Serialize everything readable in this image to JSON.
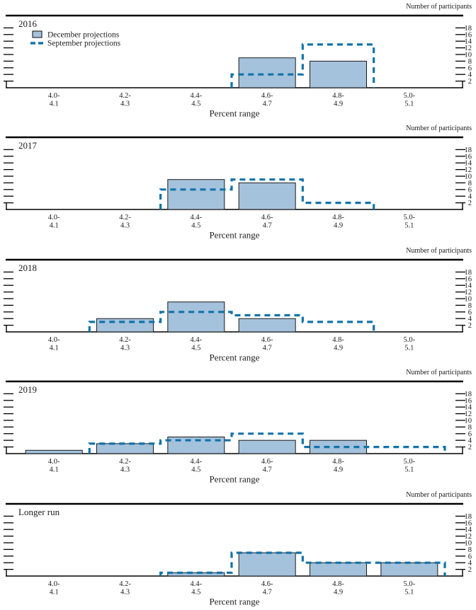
{
  "figure": {
    "right_axis_label": "Number of participants",
    "x_axis_label": "Percent range"
  },
  "chart_data": {
    "type": "bar",
    "subtype": "grouped-histogram-panels",
    "categories_line1": [
      "4.0-",
      "4.2-",
      "4.4-",
      "4.6-",
      "4.8-",
      "5.0-"
    ],
    "categories_line2": [
      "4.1",
      "4.3",
      "4.5",
      "4.7",
      "4.9",
      "5.1"
    ],
    "xlabel": "Percent range",
    "right_axis_label": "Number of participants",
    "yticks": [
      2,
      4,
      6,
      8,
      10,
      12,
      14,
      16,
      18
    ],
    "ylim": [
      0,
      21
    ],
    "grid": false,
    "legend": {
      "position": "top-left-first-panel",
      "entries": [
        {
          "name": "December projections",
          "style": "bar"
        },
        {
          "name": "September projections",
          "style": "dashed-line"
        }
      ]
    },
    "panels": [
      {
        "title": "2016",
        "show_legend": true,
        "series": [
          {
            "name": "December projections",
            "values": [
              0,
              0,
              0,
              9,
              8,
              0
            ]
          },
          {
            "name": "September projections",
            "values": [
              0,
              0,
              0,
              4,
              13,
              0
            ]
          }
        ]
      },
      {
        "title": "2017",
        "show_legend": false,
        "series": [
          {
            "name": "December projections",
            "values": [
              0,
              0,
              9,
              8,
              0,
              0
            ]
          },
          {
            "name": "September projections",
            "values": [
              0,
              0,
              6,
              9,
              2,
              0
            ]
          }
        ]
      },
      {
        "title": "2018",
        "show_legend": false,
        "series": [
          {
            "name": "December projections",
            "values": [
              0,
              4,
              9,
              4,
              0,
              0
            ]
          },
          {
            "name": "September projections",
            "values": [
              0,
              3,
              6,
              5,
              3,
              0
            ]
          }
        ]
      },
      {
        "title": "2019",
        "show_legend": false,
        "series": [
          {
            "name": "December projections",
            "values": [
              1,
              3,
              5,
              4,
              4,
              0
            ]
          },
          {
            "name": "September projections",
            "values": [
              0,
              3,
              4,
              6,
              2,
              2
            ]
          }
        ]
      },
      {
        "title": "Longer run",
        "show_legend": false,
        "series": [
          {
            "name": "December projections",
            "values": [
              0,
              0,
              1,
              7,
              4,
              4
            ]
          },
          {
            "name": "September projections",
            "values": [
              0,
              0,
              1,
              7,
              4,
              4
            ]
          }
        ]
      }
    ],
    "colors": {
      "bar_fill": "#a4c2dc",
      "bar_border": "#1a1a1a",
      "september_line": "#1173a9",
      "frame": "#000000",
      "text": "#1c1c1c"
    }
  }
}
